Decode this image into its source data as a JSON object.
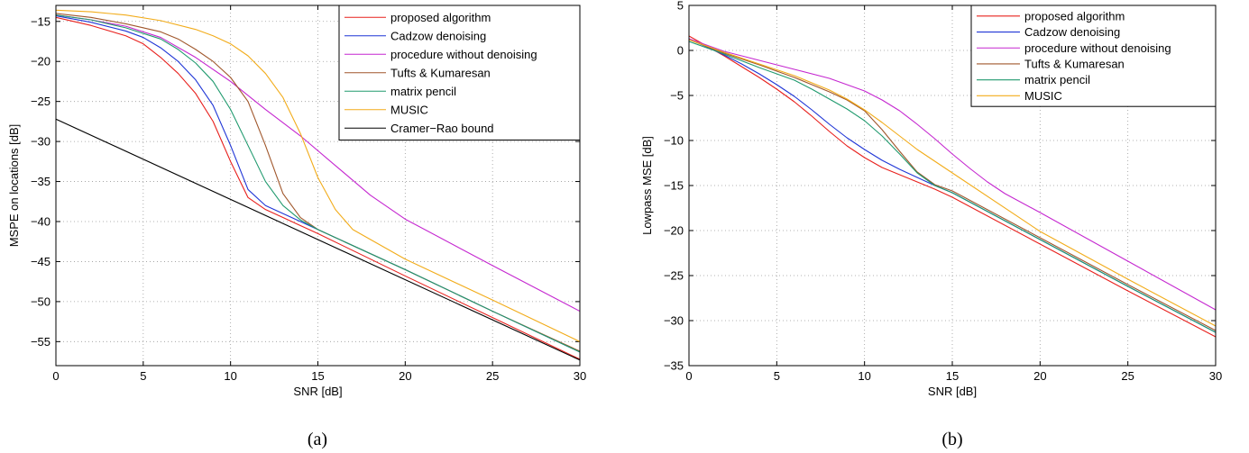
{
  "chart_data": [
    {
      "type": "line",
      "caption": "(a)",
      "xlabel": "SNR [dB]",
      "ylabel": "MSPE on locations [dB]",
      "xlim": [
        0,
        30
      ],
      "ylim": [
        -58,
        -13
      ],
      "xticks": [
        0,
        5,
        10,
        15,
        20,
        25,
        30
      ],
      "yticks": [
        -55,
        -50,
        -45,
        -40,
        -35,
        -30,
        -25,
        -20,
        -15
      ],
      "grid": true,
      "legend": "top-right",
      "series": [
        {
          "name": "proposed algorithm",
          "color": "#e8201d",
          "x": [
            0,
            2,
            4,
            5,
            6,
            7,
            8,
            9,
            10,
            11,
            12,
            13,
            14,
            15,
            20,
            25,
            30
          ],
          "y": [
            -14.5,
            -15.5,
            -16.8,
            -17.8,
            -19.5,
            -21.5,
            -24,
            -27.5,
            -32.5,
            -37,
            -38.5,
            -39.5,
            -40.5,
            -41.5,
            -46.8,
            -52,
            -57.2
          ]
        },
        {
          "name": "Cadzow denoising",
          "color": "#1f35d6",
          "x": [
            0,
            2,
            4,
            5,
            6,
            7,
            8,
            9,
            10,
            11,
            12,
            13,
            14,
            15,
            20,
            25,
            30
          ],
          "y": [
            -14.3,
            -15.1,
            -16.2,
            -17,
            -18.3,
            -20,
            -22.3,
            -25.5,
            -30.5,
            -36,
            -38,
            -39,
            -40,
            -41,
            -46,
            -51.2,
            -56.3
          ]
        },
        {
          "name": "procedure without denoising",
          "color": "#c527d0",
          "x": [
            0,
            2,
            4,
            6,
            8,
            10,
            12,
            14,
            16,
            18,
            20,
            25,
            30
          ],
          "y": [
            -14.2,
            -14.8,
            -15.6,
            -17,
            -19.5,
            -22.5,
            -26,
            -29.3,
            -33,
            -36.7,
            -39.7,
            -45.5,
            -51.2
          ]
        },
        {
          "name": "Tufts & Kumaresan",
          "color": "#a0572c",
          "x": [
            0,
            2,
            4,
            6,
            7,
            8,
            9,
            10,
            11,
            12,
            13,
            14,
            15,
            20,
            25,
            30
          ],
          "y": [
            -14,
            -14.5,
            -15.3,
            -16.3,
            -17.2,
            -18.5,
            -20,
            -22,
            -25,
            -30.5,
            -36.5,
            -39.5,
            -41,
            -46,
            -51.2,
            -56.2
          ]
        },
        {
          "name": "matrix pencil",
          "color": "#209a6e",
          "x": [
            0,
            2,
            4,
            6,
            7,
            8,
            9,
            10,
            11,
            12,
            13,
            14,
            15,
            20,
            25,
            30
          ],
          "y": [
            -14.2,
            -14.8,
            -15.8,
            -17.2,
            -18.5,
            -20.2,
            -22.5,
            -26,
            -30.5,
            -35,
            -38,
            -39.8,
            -41,
            -46,
            -51.2,
            -56.3
          ]
        },
        {
          "name": "MUSIC",
          "color": "#f2ac1a",
          "x": [
            0,
            2,
            4,
            6,
            8,
            9,
            10,
            11,
            12,
            13,
            14,
            15,
            16,
            17,
            20,
            25,
            30
          ],
          "y": [
            -13.6,
            -13.8,
            -14.2,
            -14.9,
            -16,
            -16.8,
            -17.8,
            -19.3,
            -21.5,
            -24.5,
            -29,
            -34.5,
            -38.5,
            -41,
            -44.7,
            -49.8,
            -55
          ]
        },
        {
          "name": "Cramer−Rao bound",
          "color": "#000000",
          "x": [
            0,
            30
          ],
          "y": [
            -27.2,
            -57.3
          ]
        }
      ]
    },
    {
      "type": "line",
      "caption": "(b)",
      "xlabel": "SNR [dB]",
      "ylabel": "Lowpass MSE [dB]",
      "xlim": [
        0,
        30
      ],
      "ylim": [
        -35,
        5
      ],
      "xticks": [
        0,
        5,
        10,
        15,
        20,
        25,
        30
      ],
      "yticks": [
        -35,
        -30,
        -25,
        -20,
        -15,
        -10,
        -5,
        0,
        5
      ],
      "grid": true,
      "legend": "top-right",
      "series": [
        {
          "name": "proposed algorithm",
          "color": "#e8201d",
          "x": [
            0,
            1,
            2,
            3,
            4,
            5,
            6,
            7,
            8,
            9,
            10,
            11,
            12,
            13,
            14,
            15,
            20,
            25,
            30
          ],
          "y": [
            1.6,
            0.5,
            -0.6,
            -1.8,
            -3,
            -4.3,
            -5.7,
            -7.3,
            -9,
            -10.6,
            -11.9,
            -13,
            -13.8,
            -14.6,
            -15.4,
            -16.3,
            -21.5,
            -26.7,
            -31.8
          ]
        },
        {
          "name": "Cadzow denoising",
          "color": "#1f35d6",
          "x": [
            0,
            1,
            2,
            3,
            4,
            5,
            6,
            7,
            8,
            9,
            10,
            11,
            12,
            13,
            14,
            15,
            20,
            25,
            30
          ],
          "y": [
            1.3,
            0.4,
            -0.5,
            -1.5,
            -2.6,
            -3.8,
            -5.1,
            -6.6,
            -8.2,
            -9.7,
            -11,
            -12.2,
            -13.2,
            -14.1,
            -15,
            -15.8,
            -21,
            -26.2,
            -31.3
          ]
        },
        {
          "name": "procedure without denoising",
          "color": "#c527d0",
          "x": [
            0,
            2,
            4,
            6,
            8,
            10,
            11,
            12,
            13,
            14,
            15,
            16,
            17,
            18,
            20,
            25,
            30
          ],
          "y": [
            1.3,
            -0.1,
            -1.1,
            -2.1,
            -3.1,
            -4.5,
            -5.5,
            -6.7,
            -8.2,
            -9.8,
            -11.5,
            -13.1,
            -14.6,
            -15.9,
            -18,
            -23.4,
            -28.8
          ]
        },
        {
          "name": "Tufts & Kumaresan",
          "color": "#a0572c",
          "x": [
            0,
            2,
            4,
            6,
            7,
            8,
            9,
            10,
            11,
            12,
            13,
            14,
            15,
            20,
            25,
            30
          ],
          "y": [
            1.2,
            -0.3,
            -1.6,
            -3,
            -3.8,
            -4.6,
            -5.5,
            -6.7,
            -8.8,
            -11.2,
            -13.5,
            -14.9,
            -15.6,
            -20.8,
            -26,
            -31.1
          ]
        },
        {
          "name": "matrix pencil",
          "color": "#209a6e",
          "x": [
            0,
            2,
            4,
            6,
            7,
            8,
            9,
            10,
            11,
            12,
            13,
            14,
            15,
            20,
            25,
            30
          ],
          "y": [
            1,
            -0.4,
            -1.9,
            -3.3,
            -4.3,
            -5.4,
            -6.5,
            -7.8,
            -9.5,
            -11.5,
            -13.6,
            -15,
            -15.8,
            -21,
            -26.2,
            -31.3
          ]
        },
        {
          "name": "MUSIC",
          "color": "#f2ac1a",
          "x": [
            0,
            2,
            4,
            6,
            8,
            9,
            10,
            11,
            12,
            13,
            14,
            15,
            20,
            25,
            30
          ],
          "y": [
            1.2,
            -0.2,
            -1.5,
            -2.8,
            -4.4,
            -5.4,
            -6.6,
            -8,
            -9.5,
            -11,
            -12.3,
            -13.6,
            -20.1,
            -25.4,
            -30.6
          ]
        }
      ]
    }
  ]
}
